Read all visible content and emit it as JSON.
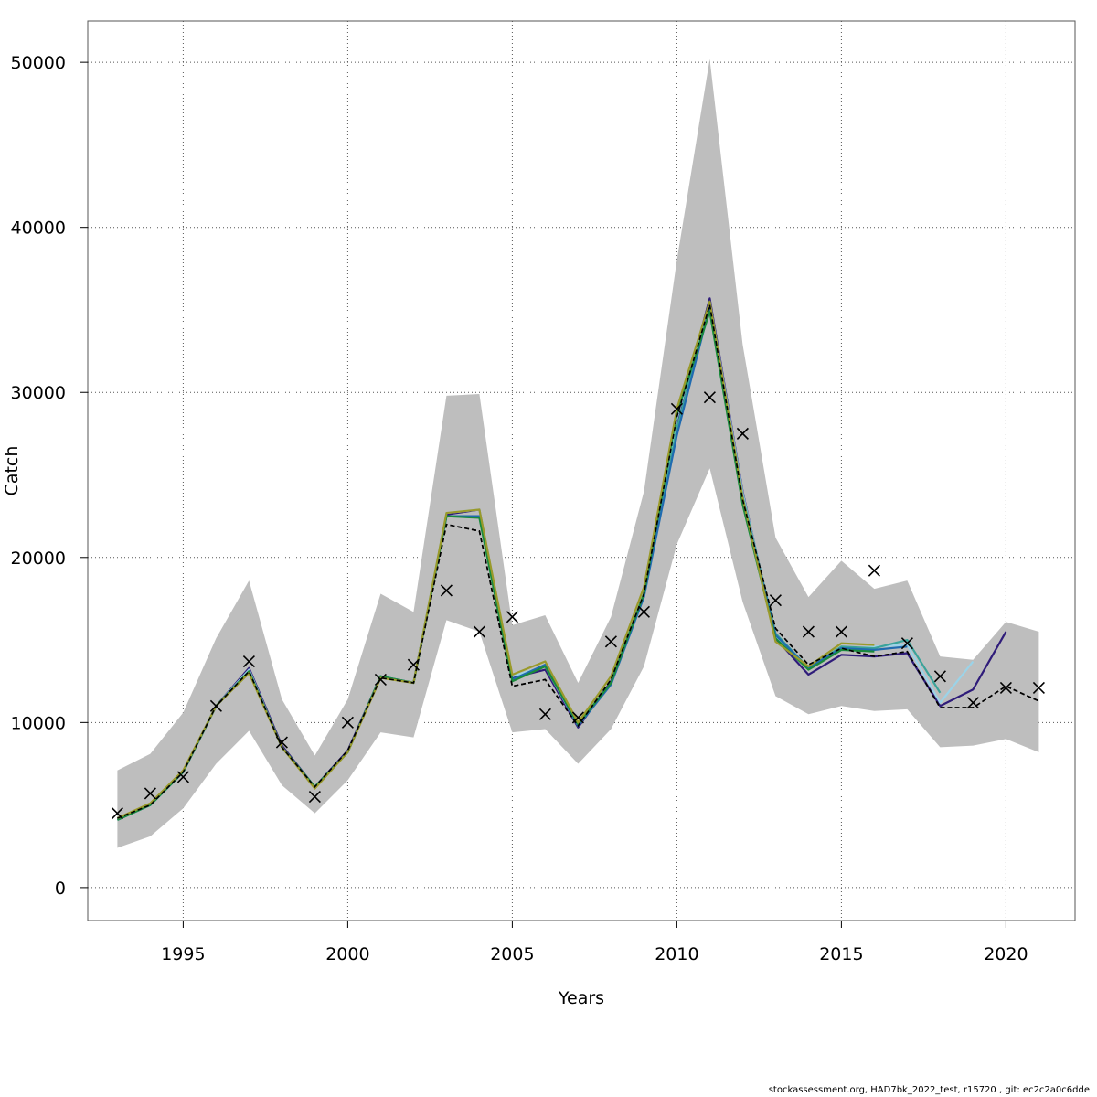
{
  "chart_data": {
    "type": "line",
    "title": "",
    "xlabel": "Years",
    "ylabel": "Catch",
    "xlim": [
      1992.1,
      2022.1
    ],
    "ylim": [
      -2000,
      52500
    ],
    "x_ticks": [
      1995,
      2000,
      2005,
      2010,
      2015,
      2020
    ],
    "y_ticks": [
      0,
      10000,
      20000,
      30000,
      40000,
      50000
    ],
    "grid": true,
    "years": [
      1993,
      1994,
      1995,
      1996,
      1997,
      1998,
      1999,
      2000,
      2001,
      2002,
      2003,
      2004,
      2005,
      2006,
      2007,
      2008,
      2009,
      2010,
      2011,
      2012,
      2013,
      2014,
      2015,
      2016,
      2017,
      2018,
      2019,
      2020,
      2021
    ],
    "confidence_band": {
      "color": "#bebebe",
      "lower": [
        2400,
        3100,
        4800,
        7500,
        9500,
        6200,
        4500,
        6500,
        9400,
        9100,
        16200,
        15500,
        9400,
        9600,
        7500,
        9600,
        13400,
        20800,
        25400,
        17300,
        11600,
        10500,
        11000,
        10700,
        10800,
        8500,
        8600,
        9000,
        8200
      ],
      "upper": [
        7100,
        8100,
        10600,
        15100,
        18600,
        11400,
        8000,
        11400,
        17800,
        16700,
        29800,
        29900,
        15900,
        16500,
        12400,
        16400,
        24000,
        38000,
        50200,
        32900,
        21200,
        17600,
        19800,
        18100,
        18600,
        14000,
        13800,
        16100,
        15500
      ]
    },
    "series": [
      {
        "color": "#000000",
        "dashed": true,
        "values": [
          4200,
          5000,
          7000,
          11000,
          13100,
          8500,
          6100,
          8300,
          12700,
          12400,
          22000,
          21600,
          12200,
          12600,
          9800,
          12600,
          17800,
          28500,
          35300,
          23500,
          15700,
          13500,
          14500,
          14000,
          14300,
          10900,
          10900,
          12200,
          11300
        ]
      },
      {
        "color": "#2f1c7a",
        "dashed": false,
        "values": [
          4200,
          5000,
          7000,
          11000,
          13300,
          8600,
          6100,
          8300,
          12800,
          12400,
          22600,
          22900,
          12700,
          13200,
          9700,
          12500,
          17700,
          28200,
          35700,
          24000,
          15100,
          12900,
          14100,
          14000,
          14200,
          11000,
          12000,
          15500,
          null
        ]
      },
      {
        "color": "#9bd3e8",
        "dashed": false,
        "values": [
          4200,
          5000,
          7000,
          11000,
          13200,
          8500,
          6100,
          8200,
          12800,
          12400,
          22700,
          22900,
          12800,
          13400,
          9800,
          12400,
          17800,
          28400,
          35500,
          23900,
          15200,
          13300,
          14400,
          14600,
          14700,
          11200,
          13700,
          null,
          null
        ]
      },
      {
        "color": "#3aa39a",
        "dashed": false,
        "values": [
          4100,
          5000,
          7000,
          11000,
          13100,
          8500,
          6100,
          8200,
          12800,
          12400,
          22500,
          22500,
          12600,
          13500,
          9900,
          12400,
          17700,
          27800,
          35300,
          23700,
          15400,
          13300,
          14600,
          14500,
          15000,
          11800,
          null,
          null,
          null
        ]
      },
      {
        "color": "#1f6bb0",
        "dashed": false,
        "values": [
          4100,
          5000,
          7000,
          11000,
          13100,
          8500,
          6100,
          8200,
          12800,
          12400,
          22500,
          22500,
          12600,
          13500,
          9800,
          12300,
          17600,
          27400,
          35200,
          23500,
          15300,
          13300,
          14500,
          14400,
          14600,
          null,
          null,
          null,
          null
        ]
      },
      {
        "color": "#1a8a3c",
        "dashed": false,
        "values": [
          4100,
          5000,
          7000,
          11000,
          13100,
          8500,
          6100,
          8200,
          12800,
          12400,
          22500,
          22400,
          12500,
          13400,
          9900,
          12400,
          17800,
          28700,
          34900,
          23200,
          15100,
          13200,
          14400,
          14300,
          null,
          null,
          null,
          null,
          null
        ]
      },
      {
        "color": "#9a9a2a",
        "dashed": false,
        "values": [
          4200,
          5100,
          7100,
          11000,
          13000,
          8500,
          6000,
          8200,
          12700,
          12400,
          22700,
          22900,
          12900,
          13700,
          10000,
          12800,
          18200,
          29000,
          35500,
          23600,
          14900,
          13400,
          14800,
          14700,
          null,
          null,
          null,
          null,
          null
        ]
      }
    ],
    "observed": {
      "marker": "x",
      "values": [
        4500,
        5700,
        6700,
        11000,
        13700,
        8800,
        5500,
        10000,
        12600,
        13500,
        18000,
        15500,
        16400,
        10500,
        10300,
        14900,
        16700,
        29000,
        29700,
        27500,
        17400,
        15500,
        15500,
        19200,
        14800,
        12800,
        11200,
        12100,
        12100
      ]
    }
  },
  "footer": "stockassessment.org, HAD7bk_2022_test, r15720 , git: ec2c2a0c6dde"
}
